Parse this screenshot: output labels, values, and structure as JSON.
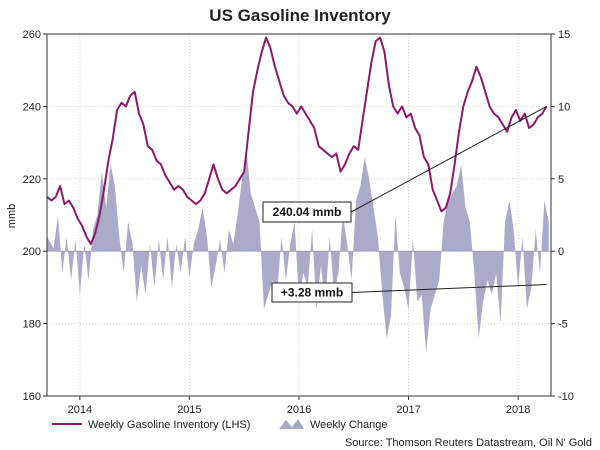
{
  "chart_data": {
    "type": "line",
    "title": "US Gasoline Inventory",
    "ylabel": "mmb",
    "ylim": [
      160,
      260
    ],
    "y2lim": [
      -10,
      15
    ],
    "yticks": [
      160,
      180,
      200,
      220,
      240,
      260
    ],
    "y2ticks": [
      -10,
      -5,
      0,
      5,
      10,
      15
    ],
    "xlim": [
      2013.7,
      2018.3
    ],
    "xticks": [
      {
        "label": "2014",
        "x": 2014.0
      },
      {
        "label": "2015",
        "x": 2015.0
      },
      {
        "label": "2016",
        "x": 2016.0
      },
      {
        "label": "2017",
        "x": 2017.0
      },
      {
        "label": "2018",
        "x": 2018.0
      }
    ],
    "grid": true,
    "series": [
      {
        "name": "Weekly Gasoline Inventory (LHS)",
        "axis": "left",
        "kind": "line",
        "color": "#8b1a6b",
        "points": [
          [
            2013.7,
            215
          ],
          [
            2013.74,
            214
          ],
          [
            2013.78,
            215
          ],
          [
            2013.82,
            218
          ],
          [
            2013.86,
            213
          ],
          [
            2013.9,
            214
          ],
          [
            2013.94,
            212
          ],
          [
            2013.98,
            209
          ],
          [
            2014.02,
            207
          ],
          [
            2014.06,
            204
          ],
          [
            2014.1,
            202
          ],
          [
            2014.14,
            205
          ],
          [
            2014.18,
            210
          ],
          [
            2014.22,
            217
          ],
          [
            2014.26,
            225
          ],
          [
            2014.3,
            231
          ],
          [
            2014.34,
            239
          ],
          [
            2014.38,
            241
          ],
          [
            2014.42,
            240
          ],
          [
            2014.46,
            243
          ],
          [
            2014.5,
            244
          ],
          [
            2014.54,
            238
          ],
          [
            2014.58,
            235
          ],
          [
            2014.62,
            229
          ],
          [
            2014.66,
            228
          ],
          [
            2014.7,
            225
          ],
          [
            2014.74,
            224
          ],
          [
            2014.78,
            221
          ],
          [
            2014.82,
            219
          ],
          [
            2014.86,
            217
          ],
          [
            2014.9,
            218
          ],
          [
            2014.94,
            217
          ],
          [
            2014.98,
            215
          ],
          [
            2015.02,
            214
          ],
          [
            2015.06,
            213
          ],
          [
            2015.1,
            214
          ],
          [
            2015.14,
            216
          ],
          [
            2015.18,
            220
          ],
          [
            2015.22,
            224
          ],
          [
            2015.26,
            220
          ],
          [
            2015.3,
            217
          ],
          [
            2015.34,
            216
          ],
          [
            2015.38,
            217
          ],
          [
            2015.42,
            218
          ],
          [
            2015.46,
            220
          ],
          [
            2015.5,
            222
          ],
          [
            2015.54,
            233
          ],
          [
            2015.58,
            244
          ],
          [
            2015.62,
            250
          ],
          [
            2015.66,
            255
          ],
          [
            2015.7,
            259
          ],
          [
            2015.74,
            256
          ],
          [
            2015.78,
            251
          ],
          [
            2015.82,
            247
          ],
          [
            2015.86,
            243
          ],
          [
            2015.9,
            241
          ],
          [
            2015.94,
            240
          ],
          [
            2015.98,
            238
          ],
          [
            2016.02,
            240
          ],
          [
            2016.06,
            238
          ],
          [
            2016.1,
            236
          ],
          [
            2016.14,
            234
          ],
          [
            2016.18,
            229
          ],
          [
            2016.22,
            228
          ],
          [
            2016.26,
            227
          ],
          [
            2016.3,
            226
          ],
          [
            2016.34,
            227
          ],
          [
            2016.38,
            222
          ],
          [
            2016.42,
            224
          ],
          [
            2016.46,
            227
          ],
          [
            2016.5,
            229
          ],
          [
            2016.54,
            228
          ],
          [
            2016.58,
            236
          ],
          [
            2016.62,
            244
          ],
          [
            2016.66,
            252
          ],
          [
            2016.7,
            258
          ],
          [
            2016.74,
            259
          ],
          [
            2016.78,
            255
          ],
          [
            2016.82,
            246
          ],
          [
            2016.86,
            240
          ],
          [
            2016.9,
            238
          ],
          [
            2016.94,
            240
          ],
          [
            2016.98,
            237
          ],
          [
            2017.02,
            238
          ],
          [
            2017.06,
            234
          ],
          [
            2017.1,
            232
          ],
          [
            2017.14,
            226
          ],
          [
            2017.18,
            224
          ],
          [
            2017.22,
            217
          ],
          [
            2017.26,
            214
          ],
          [
            2017.3,
            211
          ],
          [
            2017.34,
            212
          ],
          [
            2017.38,
            216
          ],
          [
            2017.42,
            224
          ],
          [
            2017.46,
            233
          ],
          [
            2017.5,
            240
          ],
          [
            2017.54,
            244
          ],
          [
            2017.58,
            247
          ],
          [
            2017.62,
            251
          ],
          [
            2017.66,
            248
          ],
          [
            2017.7,
            244
          ],
          [
            2017.74,
            240
          ],
          [
            2017.78,
            238
          ],
          [
            2017.82,
            237
          ],
          [
            2017.86,
            235
          ],
          [
            2017.9,
            233
          ],
          [
            2017.94,
            237
          ],
          [
            2017.98,
            239
          ],
          [
            2018.02,
            236
          ],
          [
            2018.06,
            238
          ],
          [
            2018.1,
            234
          ],
          [
            2018.14,
            235
          ],
          [
            2018.18,
            237
          ],
          [
            2018.22,
            238
          ],
          [
            2018.26,
            240
          ]
        ]
      },
      {
        "name": "Weekly Change",
        "axis": "right",
        "kind": "area",
        "color": "#a7a7c6",
        "points": [
          [
            2013.7,
            1.0
          ],
          [
            2013.76,
            0.2
          ],
          [
            2013.8,
            2.5
          ],
          [
            2013.84,
            -1.5
          ],
          [
            2013.88,
            1.0
          ],
          [
            2013.92,
            -2.0
          ],
          [
            2013.96,
            0.8
          ],
          [
            2014.0,
            -3.0
          ],
          [
            2014.04,
            0.5
          ],
          [
            2014.08,
            -2.0
          ],
          [
            2014.12,
            1.5
          ],
          [
            2014.16,
            2.5
          ],
          [
            2014.2,
            5.5
          ],
          [
            2014.24,
            3.0
          ],
          [
            2014.28,
            6.0
          ],
          [
            2014.32,
            4.5
          ],
          [
            2014.36,
            1.0
          ],
          [
            2014.4,
            -1.5
          ],
          [
            2014.44,
            2.0
          ],
          [
            2014.48,
            0.5
          ],
          [
            2014.52,
            -3.5
          ],
          [
            2014.56,
            -1.0
          ],
          [
            2014.6,
            -3.0
          ],
          [
            2014.64,
            0.5
          ],
          [
            2014.68,
            -2.5
          ],
          [
            2014.72,
            0.8
          ],
          [
            2014.76,
            -2.0
          ],
          [
            2014.8,
            1.0
          ],
          [
            2014.84,
            -2.5
          ],
          [
            2014.88,
            0.5
          ],
          [
            2014.92,
            -1.5
          ],
          [
            2014.96,
            1.0
          ],
          [
            2015.0,
            -1.8
          ],
          [
            2015.04,
            0.5
          ],
          [
            2015.08,
            1.5
          ],
          [
            2015.12,
            3.0
          ],
          [
            2015.16,
            1.0
          ],
          [
            2015.2,
            -2.5
          ],
          [
            2015.24,
            -1.0
          ],
          [
            2015.28,
            0.8
          ],
          [
            2015.32,
            -1.5
          ],
          [
            2015.36,
            1.5
          ],
          [
            2015.4,
            0.5
          ],
          [
            2015.44,
            2.5
          ],
          [
            2015.48,
            5.0
          ],
          [
            2015.52,
            7.0
          ],
          [
            2015.56,
            4.0
          ],
          [
            2015.6,
            3.0
          ],
          [
            2015.64,
            2.0
          ],
          [
            2015.68,
            -4.0
          ],
          [
            2015.72,
            -3.0
          ],
          [
            2015.76,
            -2.0
          ],
          [
            2015.8,
            -3.0
          ],
          [
            2015.84,
            1.0
          ],
          [
            2015.88,
            -2.0
          ],
          [
            2015.92,
            0.5
          ],
          [
            2015.96,
            2.0
          ],
          [
            2016.0,
            -3.5
          ],
          [
            2016.04,
            -1.5
          ],
          [
            2016.08,
            -2.5
          ],
          [
            2016.12,
            1.5
          ],
          [
            2016.16,
            -4.0
          ],
          [
            2016.2,
            -1.0
          ],
          [
            2016.24,
            -3.5
          ],
          [
            2016.28,
            1.0
          ],
          [
            2016.32,
            -3.0
          ],
          [
            2016.36,
            -1.5
          ],
          [
            2016.4,
            2.5
          ],
          [
            2016.44,
            0.5
          ],
          [
            2016.48,
            -2.0
          ],
          [
            2016.52,
            3.5
          ],
          [
            2016.56,
            4.5
          ],
          [
            2016.6,
            6.5
          ],
          [
            2016.64,
            5.0
          ],
          [
            2016.68,
            3.0
          ],
          [
            2016.72,
            1.0
          ],
          [
            2016.76,
            -3.0
          ],
          [
            2016.8,
            -6.0
          ],
          [
            2016.84,
            -4.5
          ],
          [
            2016.88,
            2.5
          ],
          [
            2016.92,
            -1.5
          ],
          [
            2016.96,
            -2.5
          ],
          [
            2017.0,
            -4.0
          ],
          [
            2017.04,
            0.8
          ],
          [
            2017.08,
            -3.5
          ],
          [
            2017.12,
            -3.0
          ],
          [
            2017.16,
            -7.0
          ],
          [
            2017.2,
            -4.0
          ],
          [
            2017.24,
            -3.0
          ],
          [
            2017.28,
            -2.0
          ],
          [
            2017.32,
            2.0
          ],
          [
            2017.36,
            3.5
          ],
          [
            2017.4,
            4.0
          ],
          [
            2017.44,
            4.5
          ],
          [
            2017.48,
            6.0
          ],
          [
            2017.52,
            3.0
          ],
          [
            2017.56,
            2.0
          ],
          [
            2017.6,
            -1.5
          ],
          [
            2017.64,
            -6.0
          ],
          [
            2017.68,
            -3.5
          ],
          [
            2017.72,
            -2.0
          ],
          [
            2017.76,
            -3.0
          ],
          [
            2017.8,
            -1.5
          ],
          [
            2017.84,
            -5.0
          ],
          [
            2017.88,
            2.0
          ],
          [
            2017.92,
            3.5
          ],
          [
            2017.96,
            1.5
          ],
          [
            2018.0,
            -2.5
          ],
          [
            2018.04,
            1.0
          ],
          [
            2018.08,
            -4.0
          ],
          [
            2018.12,
            -2.5
          ],
          [
            2018.16,
            1.5
          ],
          [
            2018.2,
            -1.5
          ],
          [
            2018.24,
            3.5
          ],
          [
            2018.28,
            2.0
          ]
        ]
      }
    ],
    "annotations": [
      {
        "text": "240.04 mmb",
        "target": [
          2018.26,
          240
        ]
      },
      {
        "text": "+3.28 mmb",
        "target": [
          2018.26,
          -2.3
        ]
      }
    ],
    "source": "Source: Thomson Reuters Datastream, Oil N' Gold"
  }
}
